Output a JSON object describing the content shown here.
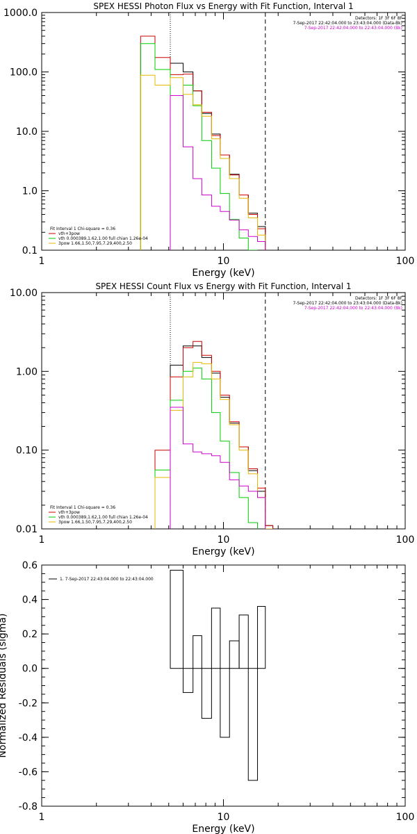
{
  "chart_data": [
    {
      "type": "line",
      "style": "step",
      "title": "SPEX HESSI Photon Flux vs Energy with Fit Function, Interval 1",
      "xlabel": "Energy (keV)",
      "ylabel": "",
      "xscale": "log",
      "yscale": "log",
      "xlim": [
        1,
        100
      ],
      "ylim": [
        0.1,
        1000
      ],
      "xticks": [
        {
          "v": 1,
          "label": "1"
        },
        {
          "v": 10,
          "label": "10"
        },
        {
          "v": 100,
          "label": "100"
        }
      ],
      "yticks": [
        {
          "v": 0.1,
          "label": "0.1"
        },
        {
          "v": 1,
          "label": "1.0"
        },
        {
          "v": 10,
          "label": "10.0"
        },
        {
          "v": 100,
          "label": "100.0"
        },
        {
          "v": 1000,
          "label": "1000.0"
        }
      ],
      "vlines": [
        {
          "x": 5.1,
          "style": "dotted"
        },
        {
          "x": 17,
          "style": "dashed"
        }
      ],
      "header": [
        {
          "text": "Detectors: 1F 3F 6F 8F",
          "color": "#000000"
        },
        {
          "text": "7-Sep-2017 22:42:04.000 to 23:43:04.000 (Data-Bk)",
          "color": "#000000"
        },
        {
          "text": "7-Sep-2017 22:42:04.000 to 22:43:04.000 (Bk)",
          "color": "#cc00cc"
        }
      ],
      "legend": [
        {
          "text": "Fit Interval 1    Chi-square = 0.36",
          "color": "#000000"
        },
        {
          "text": "vth+3pow",
          "color": "#cc0000"
        },
        {
          "text": "vth 0.000389,1.62,1.00   full chian 1.26e-04",
          "color": "#00cc00"
        },
        {
          "text": "3pow 1.66,1.50,7.95,7.29,400,2.50",
          "color": "#e6b800"
        }
      ],
      "series": [
        {
          "color": "#000000",
          "edges": [
            5.1,
            6.0,
            6.8,
            7.6,
            8.6,
            9.6,
            10.8,
            12.2,
            13.7,
            15.4,
            17.0
          ],
          "values": [
            140,
            100,
            48,
            20,
            9,
            4,
            1.9,
            0.85,
            0.42,
            0.25
          ]
        },
        {
          "color": "#cc0000",
          "edges": [
            3.5,
            4.2,
            5.1,
            6.0,
            6.8,
            7.6,
            8.6,
            9.6,
            10.8,
            12.2,
            13.7,
            15.4,
            17.0
          ],
          "values": [
            400,
            175,
            90,
            92,
            48,
            21,
            8.5,
            4.0,
            1.85,
            0.85,
            0.4,
            0.23
          ]
        },
        {
          "color": "#00cc00",
          "edges": [
            3.5,
            4.2,
            5.1,
            6.0,
            6.8,
            7.6,
            8.6,
            9.6,
            10.8,
            12.2,
            13.7,
            15.4
          ],
          "values": [
            300,
            110,
            40,
            60,
            27,
            7,
            2.4,
            0.9,
            0.33,
            0.16,
            0.1
          ]
        },
        {
          "color": "#e6b800",
          "edges": [
            3.5,
            4.2,
            5.1,
            6.0,
            6.8,
            7.6,
            8.6,
            9.6,
            10.8,
            12.2,
            13.7,
            15.4,
            17.0
          ],
          "values": [
            88,
            60,
            80,
            42,
            28,
            18,
            7.5,
            3.5,
            1.6,
            0.75,
            0.35,
            0.18
          ]
        },
        {
          "color": "#cc00cc",
          "edges": [
            5.1,
            6.0,
            6.8,
            7.6,
            8.6,
            9.6,
            10.8,
            12.2,
            13.7,
            15.4,
            17.0
          ],
          "values": [
            40,
            5.5,
            1.6,
            0.85,
            0.55,
            0.45,
            0.32,
            0.22,
            0.17,
            0.14
          ]
        }
      ]
    },
    {
      "type": "line",
      "style": "step",
      "title": "SPEX HESSI Count Flux vs Energy with Fit Function, Interval 1",
      "xlabel": "Energy (keV)",
      "ylabel": "",
      "xscale": "log",
      "yscale": "log",
      "xlim": [
        1,
        100
      ],
      "ylim": [
        0.01,
        10
      ],
      "xticks": [
        {
          "v": 1,
          "label": "1"
        },
        {
          "v": 10,
          "label": "10"
        },
        {
          "v": 100,
          "label": "100"
        }
      ],
      "yticks": [
        {
          "v": 0.01,
          "label": "0.01"
        },
        {
          "v": 0.1,
          "label": "0.10"
        },
        {
          "v": 1,
          "label": "1.00"
        },
        {
          "v": 10,
          "label": "10.00"
        }
      ],
      "vlines": [
        {
          "x": 5.1,
          "style": "dotted"
        },
        {
          "x": 17,
          "style": "dashed"
        }
      ],
      "header": [
        {
          "text": "Detectors: 1F 3F 6F 8F",
          "color": "#000000"
        },
        {
          "text": "7-Sep-2017 22:42:04.000 to 23:43:04.000 (Data-Bk)",
          "color": "#000000"
        },
        {
          "text": "7-Sep-2017 22:42:04.000 to 22:43:04.000 (Bk)",
          "color": "#cc00cc"
        }
      ],
      "legend": [
        {
          "text": "Fit Interval 1    Chi-square = 0.36",
          "color": "#000000"
        },
        {
          "text": "vth+3pow",
          "color": "#cc0000"
        },
        {
          "text": "vth 0.000389,1.62,1.00   full chian 1.26e-04",
          "color": "#00cc00"
        },
        {
          "text": "3pow 1.66,1.50,7.95,7.29,400,2.50",
          "color": "#e6b800"
        }
      ],
      "series": [
        {
          "color": "#000000",
          "edges": [
            5.1,
            6.0,
            6.8,
            7.6,
            8.6,
            9.6,
            10.8,
            12.2,
            13.7,
            15.4,
            17.0,
            18.7
          ],
          "values": [
            1.2,
            2.1,
            2.1,
            1.5,
            0.95,
            0.47,
            0.22,
            0.11,
            0.055,
            0.03,
            0.011
          ]
        },
        {
          "color": "#cc0000",
          "edges": [
            4.2,
            5.1,
            6.0,
            6.8,
            7.6,
            8.6,
            9.6,
            10.8,
            12.2,
            13.7,
            15.4,
            17.0,
            18.7
          ],
          "values": [
            0.1,
            0.85,
            2.0,
            2.4,
            1.6,
            1.0,
            0.5,
            0.23,
            0.11,
            0.058,
            0.033,
            0.011
          ]
        },
        {
          "color": "#00cc00",
          "edges": [
            4.2,
            5.1,
            6.0,
            6.8,
            7.6,
            8.6,
            9.6,
            10.8,
            12.2,
            13.7,
            15.4
          ],
          "values": [
            0.056,
            0.43,
            1.0,
            1.1,
            0.8,
            0.3,
            0.13,
            0.052,
            0.025,
            0.012
          ]
        },
        {
          "color": "#e6b800",
          "edges": [
            4.2,
            5.1,
            6.0,
            6.8,
            7.6,
            8.6,
            9.6,
            10.8,
            12.2,
            13.7,
            15.4,
            17.0,
            18.7
          ],
          "values": [
            0.045,
            0.32,
            0.85,
            1.3,
            1.25,
            0.8,
            0.44,
            0.21,
            0.1,
            0.05,
            0.025,
            0.01
          ]
        },
        {
          "color": "#cc00cc",
          "edges": [
            5.1,
            6.0,
            6.8,
            7.6,
            8.6,
            9.6,
            10.8,
            12.2,
            13.7,
            15.4,
            17.0
          ],
          "values": [
            0.35,
            0.12,
            0.095,
            0.09,
            0.085,
            0.07,
            0.042,
            0.035,
            0.03,
            0.025
          ]
        }
      ]
    },
    {
      "type": "line",
      "style": "step",
      "title": "",
      "xlabel": "Energy (keV)",
      "ylabel": "Normalized Residuals (sigma)",
      "xscale": "log",
      "yscale": "linear",
      "xlim": [
        1,
        100
      ],
      "ylim": [
        -0.8,
        0.6
      ],
      "xticks": [
        {
          "v": 1,
          "label": "1"
        },
        {
          "v": 10,
          "label": "10"
        },
        {
          "v": 100,
          "label": "100"
        }
      ],
      "yticks": [
        {
          "v": -0.8,
          "label": "-0.8"
        },
        {
          "v": -0.6,
          "label": "-0.6"
        },
        {
          "v": -0.4,
          "label": "-0.4"
        },
        {
          "v": -0.2,
          "label": "-0.2"
        },
        {
          "v": 0,
          "label": "0.0"
        },
        {
          "v": 0.2,
          "label": "0.2"
        },
        {
          "v": 0.4,
          "label": "0.4"
        },
        {
          "v": 0.6,
          "label": "0.6"
        }
      ],
      "vlines": [],
      "header": [],
      "legend": [
        {
          "text": "1.  7-Sep-2017 22:43:04.000 to 22:43:04.000",
          "color": "#000000"
        }
      ],
      "residual_bars": {
        "edges": [
          5.1,
          6.0,
          6.8,
          7.6,
          8.6,
          9.6,
          10.8,
          12.2,
          13.7,
          15.4,
          17.0
        ],
        "values": [
          0.57,
          -0.14,
          0.19,
          -0.29,
          0.35,
          -0.4,
          0.16,
          0.31,
          -0.65,
          0.36
        ]
      }
    }
  ]
}
